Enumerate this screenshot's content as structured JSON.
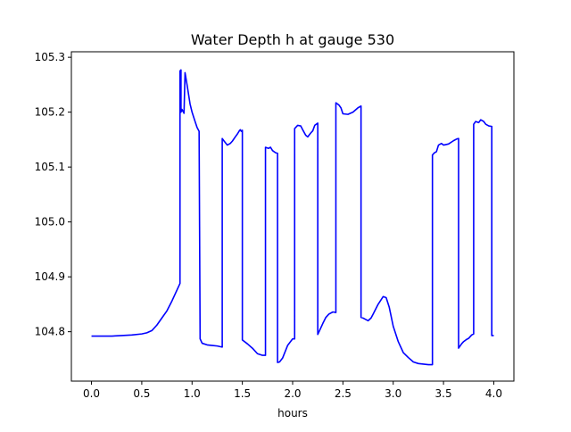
{
  "chart_data": {
    "type": "line",
    "title": "Water Depth h at gauge 530",
    "xlabel": "hours",
    "ylabel": "",
    "xlim": [
      -0.2,
      4.2
    ],
    "ylim": [
      104.71,
      105.31
    ],
    "xticks": [
      0.0,
      0.5,
      1.0,
      1.5,
      2.0,
      2.5,
      3.0,
      3.5,
      4.0
    ],
    "xtick_labels": [
      "0.0",
      "0.5",
      "1.0",
      "1.5",
      "2.0",
      "2.5",
      "3.0",
      "3.5",
      "4.0"
    ],
    "yticks": [
      104.8,
      104.9,
      105.0,
      105.1,
      105.2,
      105.3
    ],
    "ytick_labels": [
      "104.8",
      "104.9",
      "105.0",
      "105.1",
      "105.2",
      "105.3"
    ],
    "grid": false,
    "series": [
      {
        "color": "#0000ff",
        "x": [
          0.0,
          0.1,
          0.2,
          0.3,
          0.4,
          0.5,
          0.55,
          0.6,
          0.65,
          0.7,
          0.75,
          0.8,
          0.85,
          0.88,
          0.88,
          0.89,
          0.89,
          0.9,
          0.92,
          0.93,
          0.93,
          0.95,
          0.98,
          1.0,
          1.03,
          1.05,
          1.07,
          1.08,
          1.08,
          1.1,
          1.15,
          1.2,
          1.25,
          1.3,
          1.3,
          1.32,
          1.35,
          1.38,
          1.4,
          1.43,
          1.45,
          1.47,
          1.48,
          1.49,
          1.5,
          1.5,
          1.55,
          1.6,
          1.65,
          1.7,
          1.73,
          1.73,
          1.76,
          1.78,
          1.8,
          1.83,
          1.85,
          1.85,
          1.87,
          1.9,
          1.95,
          2.0,
          2.02,
          2.02,
          2.05,
          2.08,
          2.1,
          2.13,
          2.15,
          2.18,
          2.2,
          2.22,
          2.25,
          2.25,
          2.27,
          2.3,
          2.33,
          2.36,
          2.4,
          2.43,
          2.43,
          2.46,
          2.48,
          2.5,
          2.55,
          2.6,
          2.65,
          2.68,
          2.68,
          2.7,
          2.75,
          2.78,
          2.8,
          2.85,
          2.9,
          2.93,
          2.96,
          3.0,
          3.05,
          3.1,
          3.15,
          3.2,
          3.25,
          3.3,
          3.35,
          3.39,
          3.39,
          3.41,
          3.43,
          3.45,
          3.48,
          3.5,
          3.55,
          3.6,
          3.63,
          3.65,
          3.65,
          3.68,
          3.7,
          3.73,
          3.75,
          3.78,
          3.8,
          3.8,
          3.82,
          3.85,
          3.87,
          3.9,
          3.92,
          3.95,
          3.98,
          3.98,
          4.0
        ],
        "y": [
          104.792,
          104.792,
          104.792,
          104.793,
          104.794,
          104.796,
          104.798,
          104.802,
          104.812,
          104.825,
          104.838,
          104.856,
          104.876,
          104.888,
          105.275,
          105.277,
          105.2,
          105.205,
          105.198,
          105.27,
          105.272,
          105.25,
          105.215,
          105.2,
          105.183,
          105.172,
          105.165,
          104.79,
          104.787,
          104.779,
          104.776,
          104.775,
          104.774,
          104.772,
          105.152,
          105.147,
          105.14,
          105.143,
          105.147,
          105.155,
          105.16,
          105.166,
          105.168,
          105.165,
          105.167,
          104.785,
          104.778,
          104.77,
          104.76,
          104.757,
          104.757,
          105.136,
          105.134,
          105.136,
          105.13,
          105.126,
          105.125,
          104.744,
          104.745,
          104.752,
          104.775,
          104.787,
          104.787,
          105.17,
          105.176,
          105.175,
          105.168,
          105.158,
          105.155,
          105.162,
          105.166,
          105.176,
          105.18,
          104.795,
          104.803,
          104.815,
          104.826,
          104.832,
          104.836,
          104.835,
          105.217,
          105.213,
          105.208,
          105.197,
          105.196,
          105.2,
          105.208,
          105.211,
          104.826,
          104.825,
          104.82,
          104.825,
          104.832,
          104.85,
          104.864,
          104.862,
          104.845,
          104.81,
          104.782,
          104.762,
          104.753,
          104.745,
          104.742,
          104.741,
          104.74,
          104.74,
          105.122,
          105.126,
          105.128,
          105.14,
          105.143,
          105.14,
          105.142,
          105.148,
          105.151,
          105.152,
          104.77,
          104.778,
          104.782,
          104.786,
          104.788,
          104.794,
          104.796,
          105.178,
          105.183,
          105.181,
          105.186,
          105.183,
          105.178,
          105.175,
          105.174,
          104.793,
          104.793
        ]
      }
    ]
  }
}
